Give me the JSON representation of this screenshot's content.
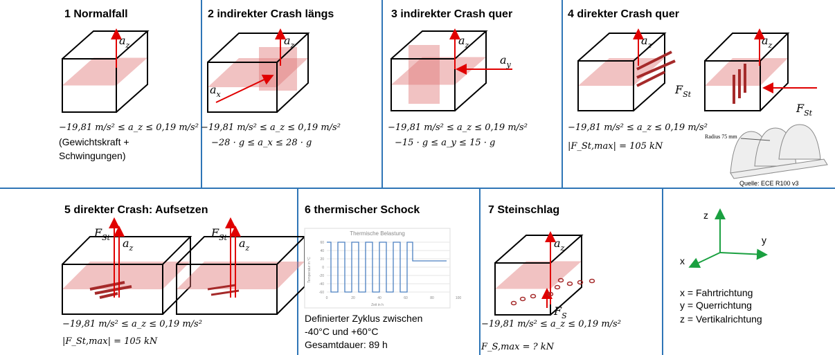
{
  "cells": [
    {
      "title": "1 Normalfall",
      "labels": [
        {
          "base": "a",
          "sub": "z"
        }
      ],
      "lines": [
        "−19,81 m/s² ≤ a_z ≤ 0,19 m/s²",
        "(Gewichtskraft +",
        "Schwingungen)"
      ]
    },
    {
      "title": "2 indirekter Crash längs",
      "labels": [
        {
          "base": "a",
          "sub": "z"
        },
        {
          "base": "a",
          "sub": "x"
        }
      ],
      "lines": [
        "−19,81 m/s² ≤ a_z ≤ 0,19 m/s²",
        "−28 · g ≤ a_x ≤ 28 · g"
      ]
    },
    {
      "title": "3 indirekter Crash quer",
      "labels": [
        {
          "base": "a",
          "sub": "z"
        },
        {
          "base": "a",
          "sub": "y"
        }
      ],
      "lines": [
        "−19,81 m/s² ≤ a_z ≤ 0,19 m/s²",
        "−15 · g ≤ a_y ≤ 15 · g"
      ]
    },
    {
      "title": "4 direkter Crash quer",
      "labels": [
        {
          "base": "a",
          "sub": "z"
        },
        {
          "base": "F",
          "sub": "St"
        },
        {
          "base": "a",
          "sub": "z"
        },
        {
          "base": "F",
          "sub": "St"
        }
      ],
      "lines": [
        "−19,81 m/s² ≤ a_z ≤ 0,19 m/s²",
        "|F_St,max| = 105 kN"
      ],
      "image": {
        "caption": "Radius 75 mm",
        "source": "Quelle: ECE R100 v3"
      }
    },
    {
      "title": "5 direkter Crash: Aufsetzen",
      "labels": [
        {
          "base": "F",
          "sub": "St"
        },
        {
          "base": "a",
          "sub": "z"
        },
        {
          "base": "F",
          "sub": "St"
        },
        {
          "base": "a",
          "sub": "z"
        }
      ],
      "lines": [
        "−19,81 m/s² ≤ a_z ≤ 0,19 m/s²",
        "|F_St,max| = 105 kN"
      ]
    },
    {
      "title": "6 thermischer Schock",
      "chart": {
        "title": "Thermische Belastung",
        "ylabel": "Temperatur in °C",
        "xlabel": "Zeit in h",
        "yticks": [
          60,
          40,
          20,
          0,
          -20,
          -40,
          -60
        ],
        "xticks": [
          0,
          20,
          40,
          60,
          80,
          100
        ]
      },
      "lines": [
        "Definierter Zyklus zwischen",
        "-40°C und +60°C",
        "Gesamtdauer: 89 h"
      ]
    },
    {
      "title": "7 Steinschlag",
      "labels": [
        {
          "base": "a",
          "sub": "z"
        },
        {
          "base": "F",
          "sub": "S"
        }
      ],
      "lines": [
        "−19,81 m/s² ≤ a_z ≤ 0,19 m/s²",
        "F_S,max = ? kN"
      ]
    },
    {
      "axes": [
        "z",
        "y",
        "x"
      ],
      "lines": [
        "x = Fahrtrichtung",
        "y = Querrichtung",
        "z = Vertikalrichtung"
      ]
    }
  ]
}
